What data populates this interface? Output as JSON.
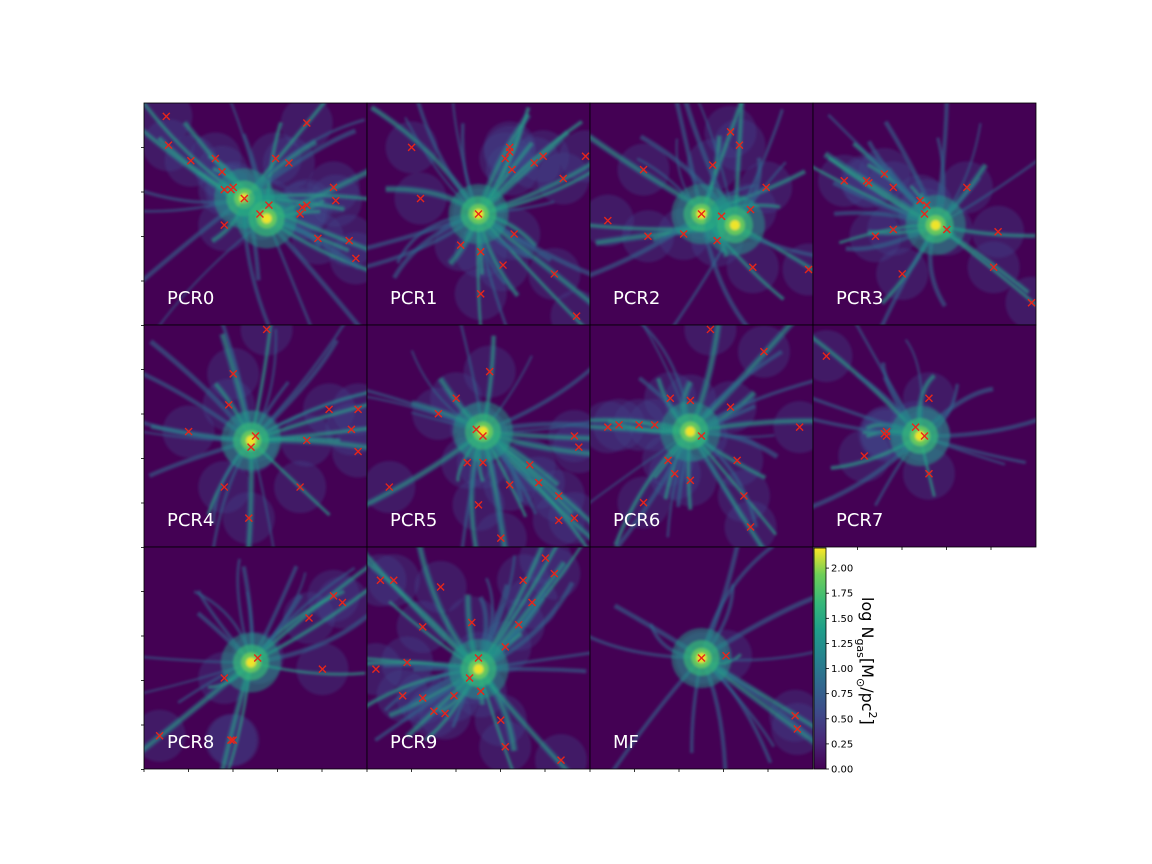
{
  "chart_data": {
    "type": "heatmap",
    "description_layout": "3x4 grid of projected gas column density maps",
    "colormap": "viridis",
    "panels": [
      {
        "label": "PCR0",
        "halos": [
          [
            0.1,
            0.06
          ],
          [
            0.11,
            0.19
          ],
          [
            0.21,
            0.26
          ],
          [
            0.32,
            0.25
          ],
          [
            0.35,
            0.31
          ],
          [
            0.36,
            0.39
          ],
          [
            0.39,
            0.39
          ],
          [
            0.4,
            0.38
          ],
          [
            0.45,
            0.43
          ],
          [
            0.52,
            0.5
          ],
          [
            0.56,
            0.46
          ],
          [
            0.59,
            0.25
          ],
          [
            0.65,
            0.27
          ],
          [
            0.71,
            0.47
          ],
          [
            0.73,
            0.46
          ],
          [
            0.7,
            0.5
          ],
          [
            0.73,
            0.09
          ],
          [
            0.85,
            0.38
          ],
          [
            0.86,
            0.44
          ],
          [
            0.78,
            0.61
          ],
          [
            0.92,
            0.62
          ],
          [
            0.95,
            0.7
          ],
          [
            0.36,
            0.55
          ]
        ],
        "cores": [
          [
            0.45,
            0.43
          ],
          [
            0.55,
            0.52
          ]
        ]
      },
      {
        "label": "PCR1",
        "halos": [
          [
            0.2,
            0.2
          ],
          [
            0.24,
            0.43
          ],
          [
            0.5,
            0.5
          ],
          [
            0.62,
            0.25
          ],
          [
            0.64,
            0.2
          ],
          [
            0.64,
            0.22
          ],
          [
            0.65,
            0.3
          ],
          [
            0.75,
            0.27
          ],
          [
            0.79,
            0.24
          ],
          [
            0.98,
            0.24
          ],
          [
            0.88,
            0.34
          ],
          [
            0.66,
            0.59
          ],
          [
            0.42,
            0.64
          ],
          [
            0.51,
            0.67
          ],
          [
            0.61,
            0.73
          ],
          [
            0.84,
            0.77
          ],
          [
            0.51,
            0.86
          ],
          [
            0.94,
            0.96
          ]
        ],
        "cores": [
          [
            0.5,
            0.5
          ]
        ]
      },
      {
        "label": "PCR2",
        "halos": [
          [
            0.63,
            0.13
          ],
          [
            0.67,
            0.19
          ],
          [
            0.55,
            0.28
          ],
          [
            0.24,
            0.3
          ],
          [
            0.79,
            0.38
          ],
          [
            0.08,
            0.53
          ],
          [
            0.5,
            0.5
          ],
          [
            0.59,
            0.51
          ],
          [
            0.72,
            0.48
          ],
          [
            0.42,
            0.59
          ],
          [
            0.57,
            0.62
          ],
          [
            0.26,
            0.6
          ],
          [
            0.73,
            0.74
          ],
          [
            0.98,
            0.75
          ]
        ],
        "cores": [
          [
            0.5,
            0.5
          ],
          [
            0.65,
            0.55
          ]
        ]
      },
      {
        "label": "PCR3",
        "halos": [
          [
            0.14,
            0.35
          ],
          [
            0.24,
            0.35
          ],
          [
            0.25,
            0.36
          ],
          [
            0.32,
            0.32
          ],
          [
            0.36,
            0.38
          ],
          [
            0.48,
            0.44
          ],
          [
            0.5,
            0.5
          ],
          [
            0.69,
            0.38
          ],
          [
            0.83,
            0.58
          ],
          [
            0.6,
            0.57
          ],
          [
            0.36,
            0.57
          ],
          [
            0.28,
            0.6
          ],
          [
            0.4,
            0.77
          ],
          [
            0.81,
            0.74
          ],
          [
            0.98,
            0.9
          ],
          [
            0.51,
            0.46
          ]
        ],
        "cores": [
          [
            0.55,
            0.55
          ]
        ]
      },
      {
        "label": "PCR4",
        "halos": [
          [
            0.55,
            0.02
          ],
          [
            0.4,
            0.22
          ],
          [
            0.38,
            0.36
          ],
          [
            0.2,
            0.48
          ],
          [
            0.5,
            0.5
          ],
          [
            0.48,
            0.55
          ],
          [
            0.73,
            0.52
          ],
          [
            0.83,
            0.38
          ],
          [
            0.96,
            0.38
          ],
          [
            0.93,
            0.47
          ],
          [
            0.96,
            0.57
          ],
          [
            0.7,
            0.73
          ],
          [
            0.36,
            0.73
          ],
          [
            0.47,
            0.87
          ]
        ],
        "cores": [
          [
            0.48,
            0.52
          ]
        ]
      },
      {
        "label": "PCR5",
        "halos": [
          [
            0.55,
            0.21
          ],
          [
            0.4,
            0.33
          ],
          [
            0.32,
            0.4
          ],
          [
            0.49,
            0.47
          ],
          [
            0.52,
            0.5
          ],
          [
            0.45,
            0.62
          ],
          [
            0.52,
            0.62
          ],
          [
            0.73,
            0.63
          ],
          [
            0.93,
            0.5
          ],
          [
            0.95,
            0.55
          ],
          [
            0.64,
            0.72
          ],
          [
            0.77,
            0.71
          ],
          [
            0.86,
            0.77
          ],
          [
            0.1,
            0.73
          ],
          [
            0.5,
            0.81
          ],
          [
            0.86,
            0.88
          ],
          [
            0.93,
            0.87
          ],
          [
            0.6,
            0.96
          ]
        ],
        "cores": [
          [
            0.52,
            0.48
          ]
        ]
      },
      {
        "label": "PCR6",
        "halos": [
          [
            0.54,
            0.02
          ],
          [
            0.78,
            0.12
          ],
          [
            0.08,
            0.46
          ],
          [
            0.13,
            0.45
          ],
          [
            0.22,
            0.45
          ],
          [
            0.29,
            0.45
          ],
          [
            0.36,
            0.33
          ],
          [
            0.45,
            0.34
          ],
          [
            0.5,
            0.5
          ],
          [
            0.63,
            0.37
          ],
          [
            0.94,
            0.46
          ],
          [
            0.35,
            0.61
          ],
          [
            0.38,
            0.67
          ],
          [
            0.45,
            0.7
          ],
          [
            0.66,
            0.61
          ],
          [
            0.69,
            0.77
          ],
          [
            0.72,
            0.91
          ],
          [
            0.24,
            0.8
          ]
        ],
        "cores": [
          [
            0.45,
            0.48
          ]
        ]
      },
      {
        "label": "PCR7",
        "halos": [
          [
            0.06,
            0.14
          ],
          [
            0.32,
            0.49
          ],
          [
            0.33,
            0.5
          ],
          [
            0.33,
            0.48
          ],
          [
            0.46,
            0.46
          ],
          [
            0.5,
            0.5
          ],
          [
            0.23,
            0.59
          ],
          [
            0.52,
            0.67
          ],
          [
            0.52,
            0.33
          ]
        ],
        "cores": [
          [
            0.48,
            0.5
          ]
        ]
      },
      {
        "label": "PCR8",
        "halos": [
          [
            0.85,
            0.22
          ],
          [
            0.89,
            0.25
          ],
          [
            0.74,
            0.32
          ],
          [
            0.51,
            0.5
          ],
          [
            0.8,
            0.55
          ],
          [
            0.36,
            0.59
          ],
          [
            0.39,
            0.87
          ],
          [
            0.4,
            0.87
          ],
          [
            0.07,
            0.85
          ]
        ],
        "cores": [
          [
            0.48,
            0.52
          ]
        ]
      },
      {
        "label": "PCR9",
        "halos": [
          [
            0.8,
            0.05
          ],
          [
            0.84,
            0.12
          ],
          [
            0.06,
            0.15
          ],
          [
            0.12,
            0.15
          ],
          [
            0.33,
            0.18
          ],
          [
            0.7,
            0.15
          ],
          [
            0.74,
            0.25
          ],
          [
            0.47,
            0.34
          ],
          [
            0.68,
            0.35
          ],
          [
            0.25,
            0.36
          ],
          [
            0.62,
            0.45
          ],
          [
            0.5,
            0.5
          ],
          [
            0.18,
            0.52
          ],
          [
            0.04,
            0.55
          ],
          [
            0.46,
            0.59
          ],
          [
            0.51,
            0.65
          ],
          [
            0.16,
            0.67
          ],
          [
            0.25,
            0.68
          ],
          [
            0.39,
            0.67
          ],
          [
            0.3,
            0.74
          ],
          [
            0.35,
            0.75
          ],
          [
            0.6,
            0.78
          ],
          [
            0.62,
            0.9
          ],
          [
            0.87,
            0.96
          ]
        ],
        "cores": [
          [
            0.5,
            0.55
          ]
        ]
      },
      {
        "label": "MF",
        "halos": [
          [
            0.5,
            0.5
          ],
          [
            0.61,
            0.49
          ],
          [
            0.92,
            0.76
          ],
          [
            0.93,
            0.82
          ]
        ],
        "cores": [
          [
            0.5,
            0.5
          ]
        ]
      }
    ],
    "colorbar": {
      "ticks": [
        "0.00",
        "0.25",
        "0.50",
        "0.75",
        "1.00",
        "1.25",
        "1.50",
        "1.75",
        "2.00"
      ],
      "range": [
        0,
        2.2
      ],
      "label_main": "log N",
      "label_sub": "gas",
      "label_units": "[M",
      "label_sub2": "⊙",
      "label_tail": "/pc",
      "label_sup": "2",
      "label_close": "]"
    },
    "marker_color": "#e8251a"
  }
}
